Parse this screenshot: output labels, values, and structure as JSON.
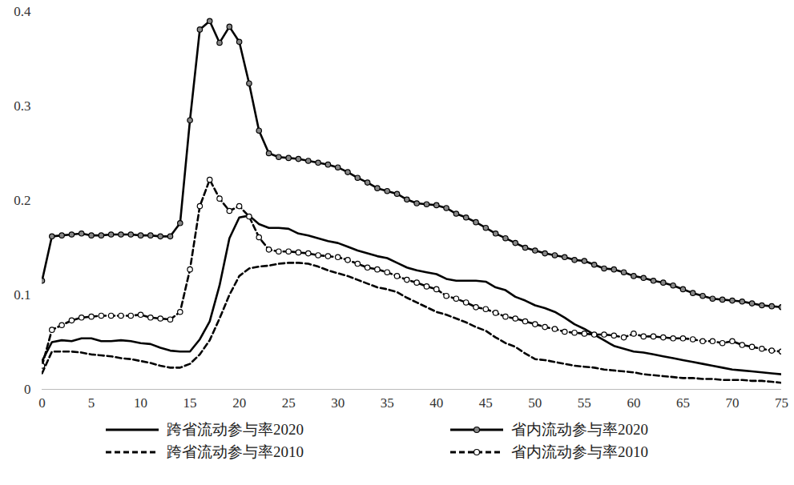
{
  "chart_data": {
    "type": "line",
    "x": [
      0,
      1,
      2,
      3,
      4,
      5,
      6,
      7,
      8,
      9,
      10,
      11,
      12,
      13,
      14,
      15,
      16,
      17,
      18,
      19,
      20,
      21,
      22,
      23,
      24,
      25,
      26,
      27,
      28,
      29,
      30,
      31,
      32,
      33,
      34,
      35,
      36,
      37,
      38,
      39,
      40,
      41,
      42,
      43,
      44,
      45,
      46,
      47,
      48,
      49,
      50,
      51,
      52,
      53,
      54,
      55,
      56,
      57,
      58,
      59,
      60,
      61,
      62,
      63,
      64,
      65,
      66,
      67,
      68,
      69,
      70,
      71,
      72,
      73,
      74,
      75
    ],
    "xlim": [
      0,
      75
    ],
    "xticks": [
      0,
      5,
      10,
      15,
      20,
      25,
      30,
      35,
      40,
      45,
      50,
      55,
      60,
      65,
      70,
      75
    ],
    "ylim": [
      0,
      0.4
    ],
    "yticks": [
      0,
      0.1,
      0.2,
      0.3,
      0.4
    ],
    "grid": false,
    "legend": "bottom",
    "series": [
      {
        "name": "跨省流动参与率2020",
        "color": "#000000",
        "line_style": "solid",
        "marker": "none",
        "values": [
          0.03,
          0.05,
          0.052,
          0.051,
          0.054,
          0.054,
          0.051,
          0.051,
          0.052,
          0.051,
          0.049,
          0.048,
          0.044,
          0.041,
          0.04,
          0.04,
          0.053,
          0.072,
          0.11,
          0.16,
          0.182,
          0.184,
          0.175,
          0.171,
          0.171,
          0.17,
          0.165,
          0.163,
          0.16,
          0.157,
          0.155,
          0.151,
          0.147,
          0.144,
          0.141,
          0.139,
          0.134,
          0.129,
          0.126,
          0.124,
          0.122,
          0.117,
          0.115,
          0.115,
          0.115,
          0.114,
          0.108,
          0.105,
          0.098,
          0.094,
          0.089,
          0.086,
          0.082,
          0.076,
          0.069,
          0.064,
          0.058,
          0.052,
          0.046,
          0.043,
          0.04,
          0.039,
          0.037,
          0.035,
          0.033,
          0.031,
          0.029,
          0.027,
          0.025,
          0.023,
          0.021,
          0.02,
          0.019,
          0.018,
          0.017,
          0.016
        ]
      },
      {
        "name": "省内流动参与率2020",
        "color": "#000000",
        "line_style": "solid",
        "marker": "circle",
        "values": [
          0.115,
          0.162,
          0.163,
          0.164,
          0.165,
          0.163,
          0.163,
          0.164,
          0.164,
          0.164,
          0.163,
          0.163,
          0.162,
          0.162,
          0.176,
          0.285,
          0.381,
          0.39,
          0.367,
          0.384,
          0.368,
          0.324,
          0.274,
          0.25,
          0.246,
          0.245,
          0.244,
          0.242,
          0.24,
          0.238,
          0.235,
          0.23,
          0.224,
          0.219,
          0.213,
          0.21,
          0.207,
          0.201,
          0.197,
          0.196,
          0.195,
          0.192,
          0.186,
          0.182,
          0.177,
          0.171,
          0.165,
          0.16,
          0.155,
          0.15,
          0.147,
          0.144,
          0.142,
          0.14,
          0.137,
          0.136,
          0.132,
          0.128,
          0.127,
          0.124,
          0.12,
          0.118,
          0.115,
          0.113,
          0.11,
          0.106,
          0.102,
          0.099,
          0.096,
          0.095,
          0.094,
          0.093,
          0.091,
          0.089,
          0.088,
          0.087
        ]
      },
      {
        "name": "跨省流动参与率2010",
        "color": "#000000",
        "line_style": "dashed",
        "marker": "none",
        "values": [
          0.017,
          0.04,
          0.04,
          0.04,
          0.039,
          0.037,
          0.036,
          0.035,
          0.033,
          0.032,
          0.03,
          0.028,
          0.025,
          0.023,
          0.023,
          0.027,
          0.037,
          0.052,
          0.075,
          0.1,
          0.12,
          0.128,
          0.13,
          0.131,
          0.133,
          0.134,
          0.134,
          0.133,
          0.13,
          0.126,
          0.123,
          0.12,
          0.116,
          0.112,
          0.108,
          0.106,
          0.103,
          0.097,
          0.092,
          0.087,
          0.082,
          0.079,
          0.075,
          0.071,
          0.066,
          0.062,
          0.055,
          0.049,
          0.045,
          0.038,
          0.032,
          0.031,
          0.029,
          0.027,
          0.025,
          0.024,
          0.023,
          0.021,
          0.02,
          0.019,
          0.018,
          0.016,
          0.015,
          0.014,
          0.013,
          0.012,
          0.012,
          0.011,
          0.011,
          0.01,
          0.01,
          0.01,
          0.009,
          0.009,
          0.008,
          0.007
        ]
      },
      {
        "name": "省内流动参与率2010",
        "color": "#000000",
        "line_style": "dashed",
        "marker": "circle",
        "values": [
          0.025,
          0.063,
          0.068,
          0.073,
          0.076,
          0.077,
          0.078,
          0.078,
          0.078,
          0.078,
          0.079,
          0.076,
          0.075,
          0.074,
          0.082,
          0.127,
          0.194,
          0.222,
          0.202,
          0.189,
          0.194,
          0.183,
          0.161,
          0.148,
          0.146,
          0.146,
          0.145,
          0.144,
          0.142,
          0.141,
          0.14,
          0.137,
          0.133,
          0.129,
          0.127,
          0.124,
          0.12,
          0.116,
          0.113,
          0.109,
          0.106,
          0.099,
          0.096,
          0.092,
          0.087,
          0.085,
          0.081,
          0.077,
          0.075,
          0.072,
          0.069,
          0.066,
          0.064,
          0.061,
          0.06,
          0.059,
          0.058,
          0.058,
          0.057,
          0.055,
          0.059,
          0.056,
          0.056,
          0.055,
          0.054,
          0.054,
          0.053,
          0.051,
          0.051,
          0.049,
          0.051,
          0.047,
          0.045,
          0.043,
          0.041,
          0.04
        ]
      }
    ]
  }
}
